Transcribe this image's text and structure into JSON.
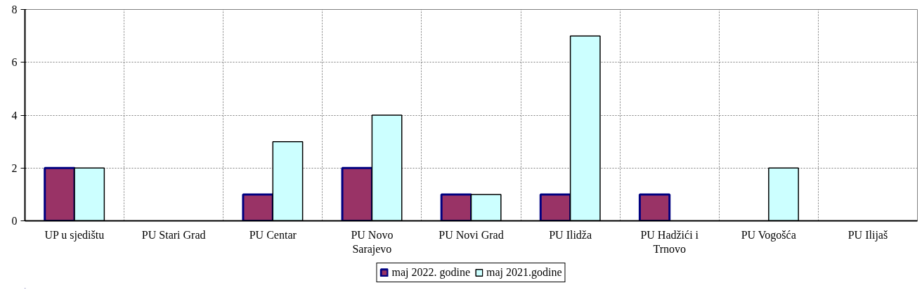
{
  "chart_data": {
    "type": "bar",
    "categories": [
      "UP u sjedištu",
      "PU Stari Grad",
      "PU Centar",
      "PU Novo Sarajevo",
      "PU Novi Grad",
      "PU Ilidža",
      "PU Hadžići i Trnovo",
      "PU Vogošća",
      "PU Ilijaš"
    ],
    "series": [
      {
        "name": "maj 2022. godine",
        "color": "#993366",
        "values": [
          2,
          null,
          1,
          2,
          1,
          1,
          1,
          null,
          null
        ]
      },
      {
        "name": "maj 2021.godine",
        "color": "#ccffff",
        "values": [
          2,
          null,
          3,
          4,
          1,
          7,
          null,
          2,
          null
        ]
      }
    ],
    "ylim": [
      0,
      8
    ],
    "yticks": [
      0,
      2,
      4,
      6,
      8
    ],
    "grid": true,
    "legend": "bottom"
  }
}
